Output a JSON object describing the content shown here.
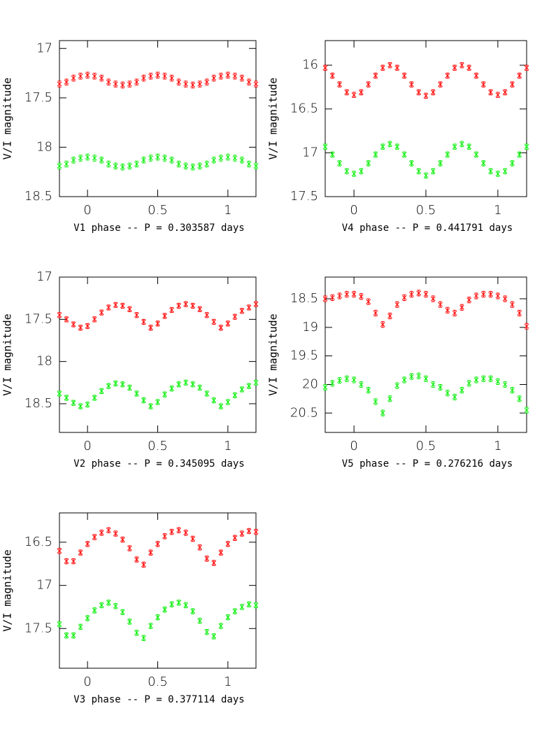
{
  "chart_data": [
    {
      "type": "scatter",
      "x_label": "V1 phase -- P = 0.303587 days",
      "y_label": "V/I magnitude",
      "x": [
        -0.2,
        -0.15,
        -0.1,
        -0.05,
        0,
        0.05,
        0.1,
        0.15,
        0.2,
        0.25,
        0.3,
        0.35,
        0.4,
        0.45,
        0.5,
        0.55,
        0.6,
        0.65,
        0.7,
        0.75,
        0.8,
        0.85,
        0.9,
        0.95,
        1,
        1.05,
        1.1,
        1.15,
        1.2
      ],
      "xlim": [
        -0.2,
        1.2
      ],
      "xticks": [
        0,
        0.5,
        1
      ],
      "ylim": [
        16.92,
        18.5
      ],
      "yticks": [
        17,
        17.5,
        18,
        18.5
      ],
      "y_inverted": true,
      "series": [
        {
          "color": "#ff0000",
          "error": 0.03,
          "values": [
            17.36,
            17.34,
            17.3,
            17.28,
            17.27,
            17.28,
            17.3,
            17.34,
            17.36,
            17.37,
            17.36,
            17.34,
            17.3,
            17.28,
            17.27,
            17.28,
            17.3,
            17.34,
            17.36,
            17.37,
            17.36,
            17.34,
            17.3,
            17.28,
            17.27,
            17.28,
            17.3,
            17.34,
            17.36
          ]
        },
        {
          "color": "#00ee00",
          "error": 0.03,
          "values": [
            18.19,
            18.17,
            18.13,
            18.11,
            18.1,
            18.11,
            18.13,
            18.17,
            18.19,
            18.2,
            18.19,
            18.17,
            18.13,
            18.11,
            18.1,
            18.11,
            18.13,
            18.17,
            18.19,
            18.2,
            18.19,
            18.17,
            18.13,
            18.11,
            18.1,
            18.11,
            18.13,
            18.17,
            18.19
          ]
        }
      ]
    },
    {
      "type": "scatter",
      "x_label": "V4 phase -- P = 0.441791 days",
      "y_label": "V/I magnitude",
      "x": [
        -0.2,
        -0.15,
        -0.1,
        -0.05,
        0,
        0.05,
        0.1,
        0.15,
        0.2,
        0.25,
        0.3,
        0.35,
        0.4,
        0.45,
        0.5,
        0.55,
        0.6,
        0.65,
        0.7,
        0.75,
        0.8,
        0.85,
        0.9,
        0.95,
        1,
        1.05,
        1.1,
        1.15,
        1.2
      ],
      "xlim": [
        -0.2,
        1.2
      ],
      "xticks": [
        0,
        0.5,
        1
      ],
      "ylim": [
        15.72,
        17.5
      ],
      "yticks": [
        16,
        16.5,
        17,
        17.5
      ],
      "y_inverted": true,
      "series": [
        {
          "color": "#ff0000",
          "error": 0.03,
          "values": [
            16.03,
            16.12,
            16.22,
            16.31,
            16.34,
            16.31,
            16.22,
            16.12,
            16.03,
            16.0,
            16.03,
            16.12,
            16.22,
            16.31,
            16.35,
            16.31,
            16.22,
            16.12,
            16.03,
            16.0,
            16.03,
            16.12,
            16.22,
            16.31,
            16.34,
            16.31,
            16.22,
            16.12,
            16.03
          ]
        },
        {
          "color": "#00ee00",
          "error": 0.03,
          "values": [
            16.93,
            17.02,
            17.12,
            17.21,
            17.24,
            17.21,
            17.12,
            17.02,
            16.93,
            16.9,
            16.93,
            17.02,
            17.12,
            17.21,
            17.26,
            17.21,
            17.12,
            17.02,
            16.93,
            16.9,
            16.93,
            17.02,
            17.12,
            17.21,
            17.24,
            17.21,
            17.12,
            17.02,
            16.93
          ]
        }
      ]
    },
    {
      "type": "scatter",
      "x_label": "V2 phase -- P = 0.345095 days",
      "y_label": "V/I magnitude",
      "x": [
        -0.2,
        -0.15,
        -0.1,
        -0.05,
        0,
        0.05,
        0.1,
        0.15,
        0.2,
        0.25,
        0.3,
        0.35,
        0.4,
        0.45,
        0.5,
        0.55,
        0.6,
        0.65,
        0.7,
        0.75,
        0.8,
        0.85,
        0.9,
        0.95,
        1,
        1.05,
        1.1,
        1.15,
        1.2
      ],
      "xlim": [
        -0.2,
        1.2
      ],
      "xticks": [
        0,
        0.5,
        1
      ],
      "ylim": [
        17,
        18.84
      ],
      "yticks": [
        17,
        17.5,
        18,
        18.5
      ],
      "y_inverted": true,
      "series": [
        {
          "color": "#ff0000",
          "error": 0.03,
          "values": [
            17.45,
            17.5,
            17.56,
            17.6,
            17.58,
            17.5,
            17.42,
            17.36,
            17.33,
            17.34,
            17.38,
            17.45,
            17.53,
            17.6,
            17.55,
            17.46,
            17.39,
            17.34,
            17.32,
            17.34,
            17.38,
            17.45,
            17.53,
            17.6,
            17.55,
            17.47,
            17.4,
            17.36,
            17.32
          ]
        },
        {
          "color": "#00ee00",
          "error": 0.03,
          "values": [
            18.38,
            18.43,
            18.49,
            18.53,
            18.51,
            18.43,
            18.35,
            18.29,
            18.26,
            18.27,
            18.31,
            18.38,
            18.46,
            18.53,
            18.48,
            18.39,
            18.32,
            18.27,
            18.25,
            18.27,
            18.31,
            18.38,
            18.46,
            18.53,
            18.48,
            18.4,
            18.33,
            18.29,
            18.25
          ]
        }
      ]
    },
    {
      "type": "scatter",
      "x_label": "V5 phase -- P = 0.276216 days",
      "y_label": "V/I magnitude",
      "x": [
        -0.2,
        -0.15,
        -0.1,
        -0.05,
        0,
        0.05,
        0.1,
        0.15,
        0.2,
        0.25,
        0.3,
        0.35,
        0.4,
        0.45,
        0.5,
        0.55,
        0.6,
        0.65,
        0.7,
        0.75,
        0.8,
        0.85,
        0.9,
        0.95,
        1,
        1.05,
        1.1,
        1.15,
        1.2
      ],
      "xlim": [
        -0.2,
        1.2
      ],
      "xticks": [
        0,
        0.5,
        1
      ],
      "ylim": [
        18.12,
        20.84
      ],
      "yticks": [
        18.5,
        19,
        19.5,
        20,
        20.5
      ],
      "y_inverted": true,
      "series": [
        {
          "color": "#ff0000",
          "error": 0.05,
          "values": [
            18.5,
            18.48,
            18.45,
            18.42,
            18.42,
            18.46,
            18.55,
            18.75,
            18.95,
            18.8,
            18.6,
            18.48,
            18.42,
            18.4,
            18.42,
            18.5,
            18.6,
            18.7,
            18.75,
            18.65,
            18.52,
            18.45,
            18.42,
            18.42,
            18.45,
            18.5,
            18.6,
            18.75,
            18.98
          ]
        },
        {
          "color": "#00ee00",
          "error": 0.05,
          "values": [
            20.05,
            19.98,
            19.93,
            19.9,
            19.92,
            20.0,
            20.1,
            20.3,
            20.5,
            20.25,
            20.02,
            19.92,
            19.86,
            19.85,
            19.9,
            20.0,
            20.05,
            20.15,
            20.22,
            20.1,
            19.98,
            19.92,
            19.9,
            19.9,
            19.95,
            20.0,
            20.1,
            20.25,
            20.45
          ]
        }
      ]
    },
    {
      "type": "scatter",
      "x_label": "V3 phase -- P = 0.377114 days",
      "y_label": "V/I magnitude",
      "x": [
        -0.2,
        -0.15,
        -0.1,
        -0.05,
        0,
        0.05,
        0.1,
        0.15,
        0.2,
        0.25,
        0.3,
        0.35,
        0.4,
        0.45,
        0.5,
        0.55,
        0.6,
        0.65,
        0.7,
        0.75,
        0.8,
        0.85,
        0.9,
        0.95,
        1,
        1.05,
        1.1,
        1.15,
        1.2
      ],
      "xlim": [
        -0.2,
        1.2
      ],
      "xticks": [
        0,
        0.5,
        1
      ],
      "ylim": [
        16.16,
        17.96
      ],
      "yticks": [
        16.5,
        17,
        17.5
      ],
      "y_inverted": true,
      "series": [
        {
          "color": "#ff0000",
          "error": 0.03,
          "values": [
            16.6,
            16.72,
            16.72,
            16.62,
            16.52,
            16.44,
            16.39,
            16.36,
            16.4,
            16.47,
            16.57,
            16.7,
            16.76,
            16.62,
            16.52,
            16.43,
            16.38,
            16.36,
            16.39,
            16.46,
            16.56,
            16.69,
            16.74,
            16.62,
            16.52,
            16.45,
            16.4,
            16.37,
            16.38
          ]
        },
        {
          "color": "#00ee00",
          "error": 0.03,
          "values": [
            17.45,
            17.58,
            17.58,
            17.48,
            17.38,
            17.29,
            17.23,
            17.2,
            17.24,
            17.31,
            17.42,
            17.55,
            17.61,
            17.47,
            17.37,
            17.28,
            17.22,
            17.2,
            17.23,
            17.3,
            17.41,
            17.54,
            17.59,
            17.47,
            17.37,
            17.3,
            17.25,
            17.22,
            17.23
          ]
        }
      ]
    }
  ]
}
